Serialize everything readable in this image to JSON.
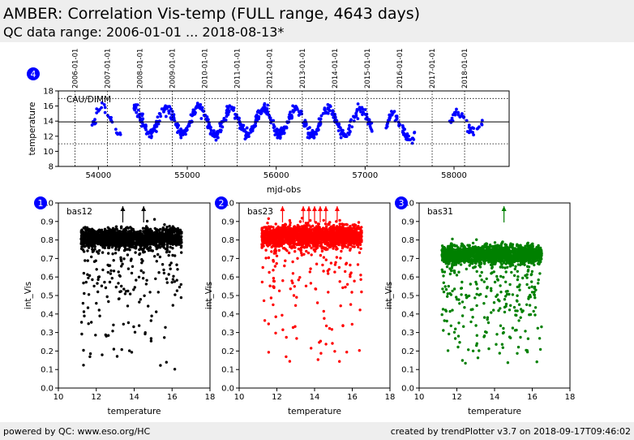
{
  "header": {
    "title": "AMBER: Correlation Vis-temp (FULL range, 4643 days)",
    "subtitle": "QC data range: 2006-01-01 ... 2018-08-13*"
  },
  "footer": {
    "left": "powered by QC: www.eso.org/HC",
    "right": "created by trendPlotter v3.7 on 2018-09-17T09:46:02"
  },
  "chart_data": [
    {
      "id": 4,
      "type": "scatter",
      "panel_label": "CAU/DIMM",
      "xlabel": "mjd-obs",
      "ylabel": "temperature",
      "xlim": [
        53550,
        58620
      ],
      "ylim": [
        8,
        18
      ],
      "xticks": [
        54000,
        55000,
        56000,
        57000,
        58000
      ],
      "yticks": [
        8,
        10,
        12,
        14,
        16,
        18
      ],
      "color": "#0000ff",
      "reference_lines": {
        "solid": 13.9,
        "dotted": [
          11.0,
          17.0
        ]
      },
      "year_markers": [
        {
          "label": "2006-01-01",
          "mjd": 53736
        },
        {
          "label": "2007-01-01",
          "mjd": 54101
        },
        {
          "label": "2008-01-01",
          "mjd": 54466
        },
        {
          "label": "2009-01-01",
          "mjd": 54832
        },
        {
          "label": "2010-01-01",
          "mjd": 55197
        },
        {
          "label": "2011-01-01",
          "mjd": 55562
        },
        {
          "label": "2012-01-01",
          "mjd": 55927
        },
        {
          "label": "2013-01-01",
          "mjd": 56293
        },
        {
          "label": "2014-01-01",
          "mjd": 56658
        },
        {
          "label": "2015-01-01",
          "mjd": 57023
        },
        {
          "label": "2016-01-01",
          "mjd": 57388
        },
        {
          "label": "2017-01-01",
          "mjd": 57754
        },
        {
          "label": "2018-01-01",
          "mjd": 58119
        }
      ],
      "segments": [
        {
          "start": 53920,
          "end": 54250,
          "mean": 14.3,
          "amp": 1.6,
          "phase": 0.9,
          "n": 30
        },
        {
          "start": 54400,
          "end": 55300,
          "mean": 14.1,
          "amp": 1.7,
          "phase": 1.2,
          "n": 200
        },
        {
          "start": 55300,
          "end": 57080,
          "mean": 13.9,
          "amp": 1.7,
          "phase": 1.2,
          "n": 400
        },
        {
          "start": 57230,
          "end": 57560,
          "mean": 13.2,
          "amp": 1.6,
          "phase": 1.2,
          "n": 60
        },
        {
          "start": 57950,
          "end": 58330,
          "mean": 13.9,
          "amp": 1.3,
          "phase": 1.2,
          "n": 40
        }
      ]
    },
    {
      "id": 1,
      "type": "scatter",
      "panel_label": "bas12",
      "xlabel": "temperature",
      "ylabel": "int_Vis",
      "xlim": [
        10,
        18
      ],
      "ylim": [
        0.0,
        1.0
      ],
      "xticks": [
        10,
        12,
        14,
        16,
        18
      ],
      "yticks": [
        0.0,
        0.1,
        0.2,
        0.3,
        0.4,
        0.5,
        0.6,
        0.7,
        0.8,
        0.9,
        1.0
      ],
      "color": "#000000",
      "band": {
        "x": [
          11.2,
          16.5
        ],
        "center": 0.81,
        "spread": 0.05
      },
      "n_points": 1900,
      "tail_fraction": 0.13,
      "outliers_above": [
        13.4,
        14.5
      ]
    },
    {
      "id": 2,
      "type": "scatter",
      "panel_label": "bas23",
      "xlabel": "temperature",
      "ylabel": "int_Vis",
      "xlim": [
        10,
        18
      ],
      "ylim": [
        0.0,
        1.0
      ],
      "xticks": [
        10,
        12,
        14,
        16,
        18
      ],
      "yticks": [
        0.0,
        0.1,
        0.2,
        0.3,
        0.4,
        0.5,
        0.6,
        0.7,
        0.8,
        0.9,
        1.0
      ],
      "color": "#ff0000",
      "band": {
        "x": [
          11.2,
          16.5
        ],
        "center": 0.82,
        "spread": 0.06
      },
      "n_points": 1900,
      "tail_fraction": 0.08,
      "outliers_above": [
        12.3,
        13.4,
        13.7,
        14.0,
        14.3,
        14.6,
        15.2
      ]
    },
    {
      "id": 3,
      "type": "scatter",
      "panel_label": "bas31",
      "xlabel": "temperature",
      "ylabel": "int_Vis",
      "xlim": [
        10,
        18
      ],
      "ylim": [
        0.0,
        1.0
      ],
      "xticks": [
        10,
        12,
        14,
        16,
        18
      ],
      "yticks": [
        0.0,
        0.1,
        0.2,
        0.3,
        0.4,
        0.5,
        0.6,
        0.7,
        0.8,
        0.9,
        1.0
      ],
      "color": "#008000",
      "band": {
        "x": [
          11.2,
          16.5
        ],
        "center": 0.72,
        "spread": 0.05
      },
      "n_points": 1900,
      "tail_fraction": 0.12,
      "outliers_above": [
        14.5
      ]
    }
  ]
}
